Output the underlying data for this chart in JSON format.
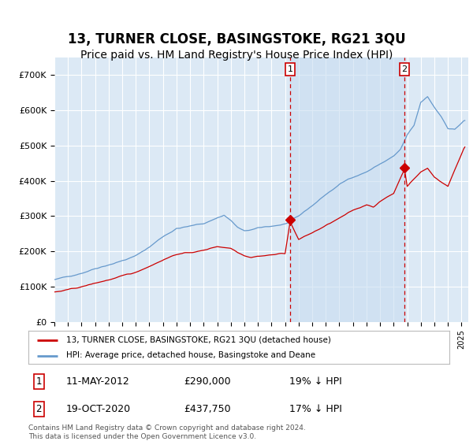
{
  "title": "13, TURNER CLOSE, BASINGSTOKE, RG21 3QU",
  "subtitle": "Price paid vs. HM Land Registry's House Price Index (HPI)",
  "title_fontsize": 12,
  "subtitle_fontsize": 10,
  "ylim": [
    0,
    750000
  ],
  "xlim_start": 1995.0,
  "xlim_end": 2025.5,
  "background_color": "#dce9f5",
  "grid_color": "#ffffff",
  "legend_label_red": "13, TURNER CLOSE, BASINGSTOKE, RG21 3QU (detached house)",
  "legend_label_blue": "HPI: Average price, detached house, Basingstoke and Deane",
  "footer": "Contains HM Land Registry data © Crown copyright and database right 2024.\nThis data is licensed under the Open Government Licence v3.0.",
  "transactions": [
    {
      "num": 1,
      "date": "11-MAY-2012",
      "price": "£290,000",
      "pct": "19% ↓ HPI",
      "year": 2012.37
    },
    {
      "num": 2,
      "date": "19-OCT-2020",
      "price": "£437,750",
      "pct": "17% ↓ HPI",
      "year": 2020.8
    }
  ],
  "red_color": "#cc0000",
  "blue_color": "#6699cc",
  "shade_color": "#dce9f5",
  "marker1_x": 2012.37,
  "marker1_y": 290000,
  "marker2_x": 2020.8,
  "marker2_y": 437750
}
